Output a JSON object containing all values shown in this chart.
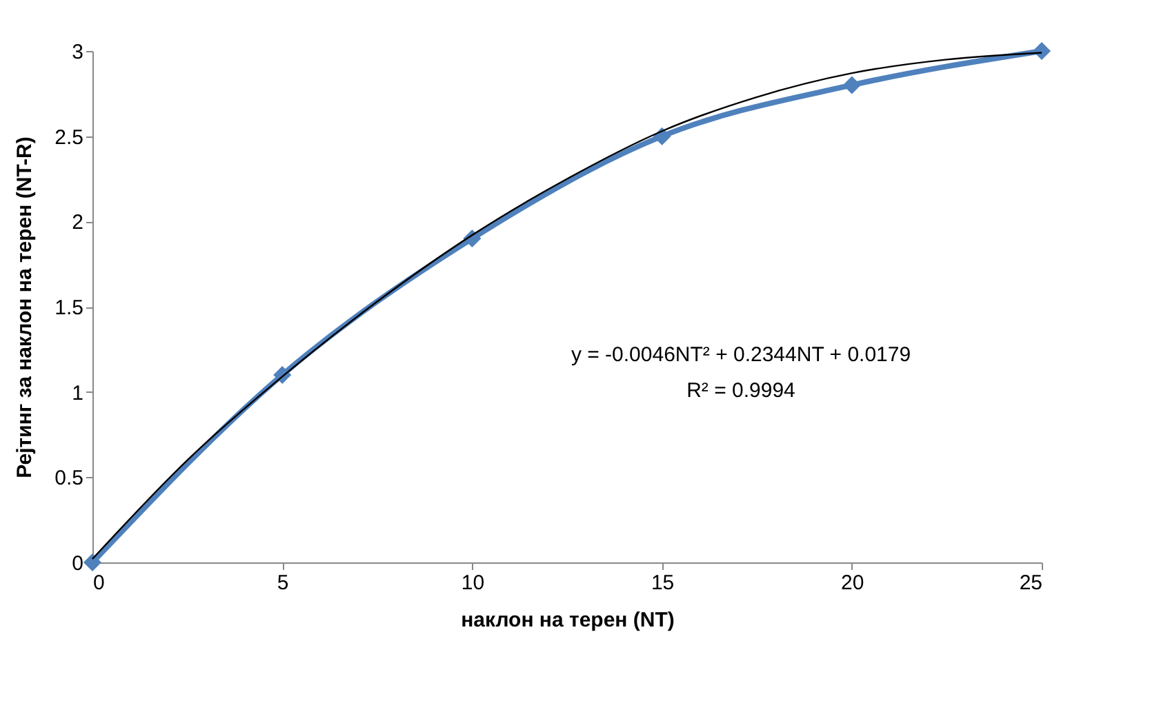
{
  "chart_data": {
    "type": "line",
    "xlabel": "наклон на терен (NT)",
    "ylabel": "Рејтинг за наклон на терен (NT-R)",
    "x": [
      0,
      5,
      10,
      15,
      20,
      25
    ],
    "series": [
      {
        "color": "#4f81bd",
        "values": [
          0,
          1.1,
          1.9,
          2.5,
          2.8,
          3.0
        ],
        "marker": "diamond"
      },
      {
        "type": "line",
        "color": "#000000",
        "marker": "none",
        "x": [
          0,
          2.5,
          5,
          7.5,
          10,
          12.5,
          15,
          17.5,
          20,
          22.5,
          25
        ],
        "values": [
          0.02,
          0.6,
          1.09,
          1.53,
          1.92,
          2.25,
          2.53,
          2.73,
          2.87,
          2.95,
          2.99
        ]
      }
    ],
    "annotations": [
      "y = -0.0046NT² + 0.2344NT + 0.0179",
      "R² = 0.9994"
    ],
    "xlim": [
      0,
      25
    ],
    "xticks": [
      0,
      5,
      10,
      15,
      20,
      25
    ],
    "ylim": [
      0,
      3
    ],
    "yticks": [
      0,
      0.5,
      1,
      1.5,
      2,
      2.5,
      3
    ],
    "grid": false,
    "line_style": "solid"
  }
}
